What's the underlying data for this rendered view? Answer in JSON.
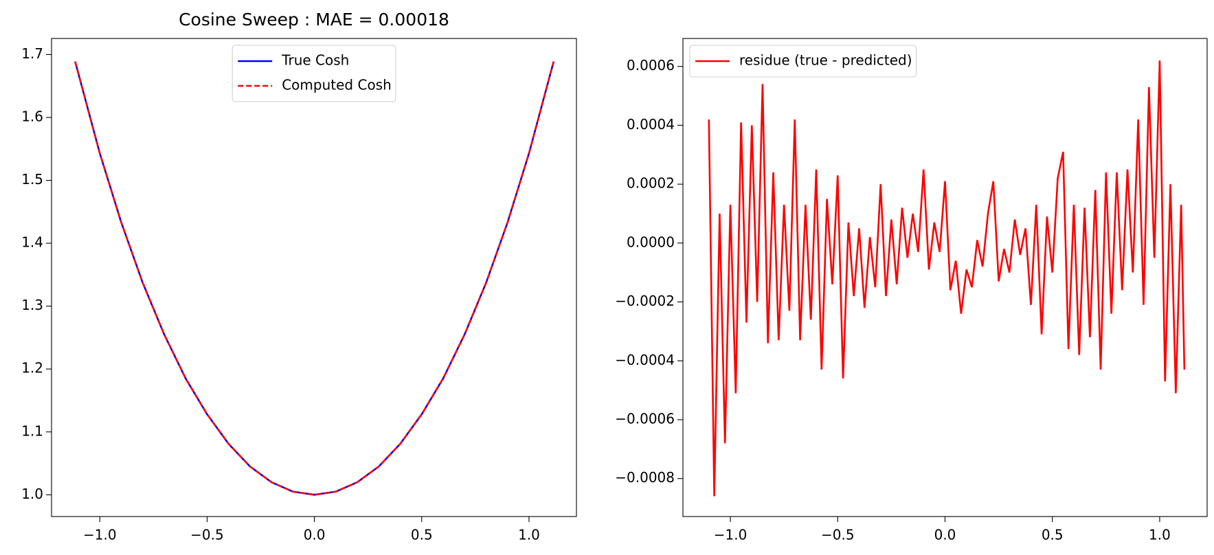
{
  "chart_data": [
    {
      "type": "line",
      "title": "Cosine Sweep : MAE = 0.00018",
      "x": [
        -1.115,
        -1.0,
        -0.9,
        -0.8,
        -0.7,
        -0.6,
        -0.5,
        -0.4,
        -0.3,
        -0.2,
        -0.1,
        0.0,
        0.1,
        0.2,
        0.3,
        0.4,
        0.5,
        0.6,
        0.7,
        0.8,
        0.9,
        1.0,
        1.115
      ],
      "series": [
        {
          "name": "True Cosh",
          "color": "#0000ff",
          "linestyle": "solid",
          "values": [
            1.689,
            1.543,
            1.433,
            1.337,
            1.255,
            1.185,
            1.128,
            1.081,
            1.045,
            1.02,
            1.005,
            1.0,
            1.005,
            1.02,
            1.045,
            1.081,
            1.128,
            1.185,
            1.255,
            1.337,
            1.433,
            1.543,
            1.689
          ]
        },
        {
          "name": "Computed Cosh",
          "color": "#ff0000",
          "linestyle": "dashed",
          "values": [
            1.689,
            1.543,
            1.433,
            1.337,
            1.255,
            1.185,
            1.128,
            1.081,
            1.045,
            1.02,
            1.005,
            1.0,
            1.005,
            1.02,
            1.045,
            1.081,
            1.128,
            1.185,
            1.255,
            1.337,
            1.433,
            1.543,
            1.689
          ]
        }
      ],
      "xlim": [
        -1.225,
        1.221
      ],
      "ylim": [
        0.9654,
        1.7256
      ],
      "xticks": [
        {
          "value": -1.0,
          "label": "−1.0"
        },
        {
          "value": -0.5,
          "label": "−0.5"
        },
        {
          "value": 0.0,
          "label": "0.0"
        },
        {
          "value": 0.5,
          "label": "0.5"
        },
        {
          "value": 1.0,
          "label": "1.0"
        }
      ],
      "yticks": [
        {
          "value": 1.0,
          "label": "1.0"
        },
        1.1,
        1.2,
        1.3,
        1.4,
        1.5,
        1.6,
        1.7
      ],
      "legend": "upper center"
    },
    {
      "type": "line",
      "x": [
        -1.1,
        -1.075,
        -1.05,
        -1.025,
        -1.0,
        -0.975,
        -0.95,
        -0.925,
        -0.9,
        -0.875,
        -0.85,
        -0.825,
        -0.8,
        -0.775,
        -0.75,
        -0.725,
        -0.7,
        -0.675,
        -0.65,
        -0.625,
        -0.6,
        -0.575,
        -0.55,
        -0.525,
        -0.5,
        -0.475,
        -0.45,
        -0.425,
        -0.4,
        -0.375,
        -0.35,
        -0.325,
        -0.3,
        -0.275,
        -0.25,
        -0.225,
        -0.2,
        -0.175,
        -0.15,
        -0.125,
        -0.1,
        -0.075,
        -0.05,
        -0.025,
        0.0,
        0.025,
        0.05,
        0.075,
        0.1,
        0.125,
        0.15,
        0.175,
        0.2,
        0.225,
        0.25,
        0.275,
        0.3,
        0.325,
        0.35,
        0.375,
        0.4,
        0.425,
        0.45,
        0.475,
        0.5,
        0.525,
        0.55,
        0.575,
        0.6,
        0.625,
        0.65,
        0.675,
        0.7,
        0.725,
        0.75,
        0.775,
        0.8,
        0.825,
        0.85,
        0.875,
        0.9,
        0.925,
        0.95,
        0.975,
        1.0,
        1.025,
        1.05,
        1.075,
        1.1,
        1.115
      ],
      "series": [
        {
          "name": "residue (true - predicted)",
          "color": "#ff0000",
          "linestyle": "solid",
          "values": [
            0.00042,
            -0.00086,
            0.0001,
            -0.00068,
            0.00013,
            -0.00051,
            0.00041,
            -0.00027,
            0.0004,
            -0.0002,
            0.00054,
            -0.00034,
            0.00024,
            -0.00033,
            0.00013,
            -0.00023,
            0.00042,
            -0.00033,
            0.00013,
            -0.00026,
            0.00025,
            -0.00043,
            0.00015,
            -0.00014,
            0.00023,
            -0.00046,
            7e-05,
            -0.00018,
            5e-05,
            -0.00022,
            2e-05,
            -0.00015,
            0.0002,
            -0.00018,
            8e-05,
            -0.00014,
            0.00012,
            -5e-05,
            0.0001,
            -3e-05,
            0.00025,
            -9e-05,
            7e-05,
            -3e-05,
            0.00021,
            -0.00016,
            -6e-05,
            -0.00024,
            -9e-05,
            -0.00015,
            1e-05,
            -8e-05,
            0.0001,
            0.00021,
            -0.00013,
            -2e-05,
            -0.0001,
            8e-05,
            -4e-05,
            5e-05,
            -0.00021,
            0.00013,
            -0.00031,
            9e-05,
            -0.0001,
            0.00022,
            0.00031,
            -0.00036,
            0.00013,
            -0.00038,
            0.00012,
            -0.00032,
            0.00018,
            -0.00043,
            0.00024,
            -0.00024,
            0.00024,
            -0.00016,
            0.00025,
            -0.0001,
            0.00042,
            -0.00021,
            0.00053,
            -5e-05,
            0.00062,
            -0.00047,
            0.0002,
            -0.00051,
            0.00013,
            -0.00043
          ]
        }
      ],
      "xlim": [
        -1.221,
        1.221
      ],
      "ylim": [
        -0.000929,
        0.000695
      ],
      "xticks": [
        {
          "value": -1.0,
          "label": "−1.0"
        },
        {
          "value": -0.5,
          "label": "−0.5"
        },
        {
          "value": 0.0,
          "label": "0.0"
        },
        {
          "value": 0.5,
          "label": "0.5"
        },
        {
          "value": 1.0,
          "label": "1.0"
        }
      ],
      "yticks": [
        {
          "value": -0.0008,
          "label": "−0.0008"
        },
        {
          "value": -0.0006,
          "label": "−0.0006"
        },
        {
          "value": -0.0004,
          "label": "−0.0004"
        },
        {
          "value": -0.0002,
          "label": "−0.0002"
        },
        {
          "value": 0.0,
          "label": "0.0000"
        },
        {
          "value": 0.0002,
          "label": "0.0002"
        },
        {
          "value": 0.0004,
          "label": "0.0004"
        },
        {
          "value": 0.0006,
          "label": "0.0006"
        }
      ],
      "legend": "upper left"
    }
  ]
}
